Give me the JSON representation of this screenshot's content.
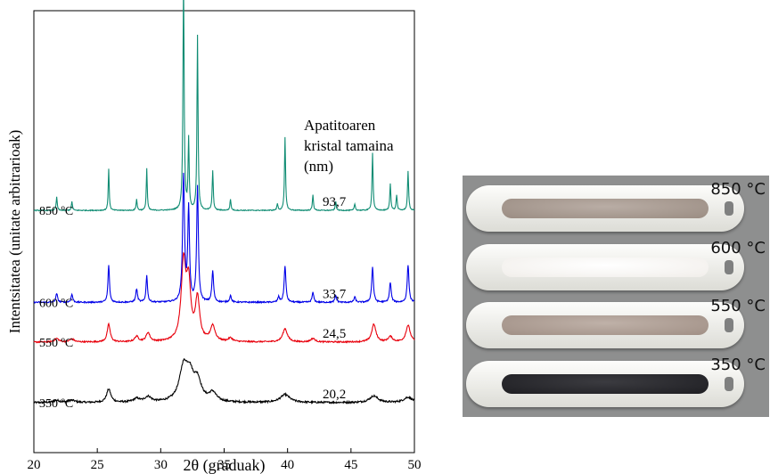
{
  "chart_data": {
    "type": "line",
    "title": "",
    "xlabel": "2θ (graduak)",
    "ylabel": "Intentsitatea (unitate arbitrarioak)",
    "xlim": [
      20,
      50
    ],
    "xticks": [
      20,
      25,
      30,
      35,
      40,
      45,
      50
    ],
    "ylim": [
      0,
      1
    ],
    "yticks_shown": false,
    "grid": false,
    "legend": "none",
    "annotation_header": [
      "Apatitoaren",
      "kristal tamaina",
      "(nm)"
    ],
    "series": [
      {
        "name": "350 ºC",
        "color": "#000000",
        "baseline": 0.113,
        "crystal_size": "20,2",
        "noise": 0.004,
        "peaks": [
          [
            21.8,
            0.005,
            0.3
          ],
          [
            23.0,
            0.005,
            0.3
          ],
          [
            25.9,
            0.03,
            0.2
          ],
          [
            28.1,
            0.008,
            0.3
          ],
          [
            29.0,
            0.012,
            0.3
          ],
          [
            31.8,
            0.075,
            0.4
          ],
          [
            32.3,
            0.05,
            0.35
          ],
          [
            32.9,
            0.045,
            0.35
          ],
          [
            34.1,
            0.02,
            0.35
          ],
          [
            39.8,
            0.018,
            0.45
          ],
          [
            46.8,
            0.015,
            0.4
          ],
          [
            49.5,
            0.012,
            0.4
          ]
        ]
      },
      {
        "name": "550 ºC",
        "color": "#e8000c",
        "baseline": 0.25,
        "crystal_size": "24,5",
        "noise": 0.003,
        "peaks": [
          [
            21.8,
            0.008,
            0.2
          ],
          [
            23.0,
            0.007,
            0.2
          ],
          [
            25.9,
            0.04,
            0.14
          ],
          [
            28.1,
            0.012,
            0.18
          ],
          [
            29.0,
            0.02,
            0.18
          ],
          [
            31.8,
            0.175,
            0.22
          ],
          [
            32.2,
            0.12,
            0.2
          ],
          [
            32.9,
            0.095,
            0.2
          ],
          [
            34.1,
            0.035,
            0.22
          ],
          [
            35.5,
            0.008,
            0.2
          ],
          [
            39.8,
            0.03,
            0.22
          ],
          [
            42.0,
            0.008,
            0.2
          ],
          [
            46.8,
            0.04,
            0.2
          ],
          [
            48.1,
            0.012,
            0.2
          ],
          [
            49.5,
            0.038,
            0.2
          ]
        ]
      },
      {
        "name": "600 ºC",
        "color": "#0000e8",
        "baseline": 0.34,
        "crystal_size": "33,7",
        "noise": 0.003,
        "peaks": [
          [
            21.8,
            0.02,
            0.08
          ],
          [
            23.0,
            0.018,
            0.08
          ],
          [
            25.9,
            0.085,
            0.07
          ],
          [
            28.1,
            0.03,
            0.08
          ],
          [
            28.9,
            0.06,
            0.07
          ],
          [
            31.8,
            0.285,
            0.09
          ],
          [
            32.2,
            0.21,
            0.08
          ],
          [
            32.9,
            0.26,
            0.08
          ],
          [
            34.1,
            0.07,
            0.08
          ],
          [
            35.5,
            0.015,
            0.08
          ],
          [
            39.3,
            0.012,
            0.08
          ],
          [
            39.8,
            0.083,
            0.08
          ],
          [
            42.0,
            0.022,
            0.08
          ],
          [
            43.8,
            0.015,
            0.08
          ],
          [
            45.3,
            0.012,
            0.08
          ],
          [
            46.7,
            0.08,
            0.08
          ],
          [
            48.1,
            0.045,
            0.08
          ],
          [
            49.5,
            0.085,
            0.08
          ]
        ]
      },
      {
        "name": "850 ºC",
        "color": "#0f8c73",
        "baseline": 0.548,
        "crystal_size": "93,7",
        "noise": 0.002,
        "peaks": [
          [
            21.8,
            0.03,
            0.05
          ],
          [
            23.0,
            0.02,
            0.05
          ],
          [
            25.9,
            0.095,
            0.045
          ],
          [
            28.1,
            0.025,
            0.05
          ],
          [
            28.9,
            0.095,
            0.045
          ],
          [
            31.8,
            0.52,
            0.055
          ],
          [
            32.2,
            0.16,
            0.05
          ],
          [
            32.9,
            0.395,
            0.05
          ],
          [
            34.1,
            0.09,
            0.05
          ],
          [
            35.5,
            0.025,
            0.05
          ],
          [
            39.2,
            0.015,
            0.05
          ],
          [
            39.8,
            0.165,
            0.05
          ],
          [
            42.0,
            0.035,
            0.05
          ],
          [
            43.8,
            0.02,
            0.05
          ],
          [
            45.3,
            0.015,
            0.05
          ],
          [
            46.7,
            0.13,
            0.05
          ],
          [
            48.1,
            0.06,
            0.05
          ],
          [
            48.6,
            0.035,
            0.05
          ],
          [
            49.5,
            0.09,
            0.05
          ]
        ]
      }
    ]
  },
  "photo": {
    "samples": [
      {
        "label": "850 °C",
        "color": "#9a8c82",
        "shade": "#b9ada5"
      },
      {
        "label": "600 °C",
        "color": "#f1eeea",
        "shade": "#ffffff"
      },
      {
        "label": "550 °C",
        "color": "#a08f85",
        "shade": "#bfb1a8"
      },
      {
        "label": "350 °C",
        "color": "#1e1e22",
        "shade": "#3b3b40"
      }
    ]
  }
}
